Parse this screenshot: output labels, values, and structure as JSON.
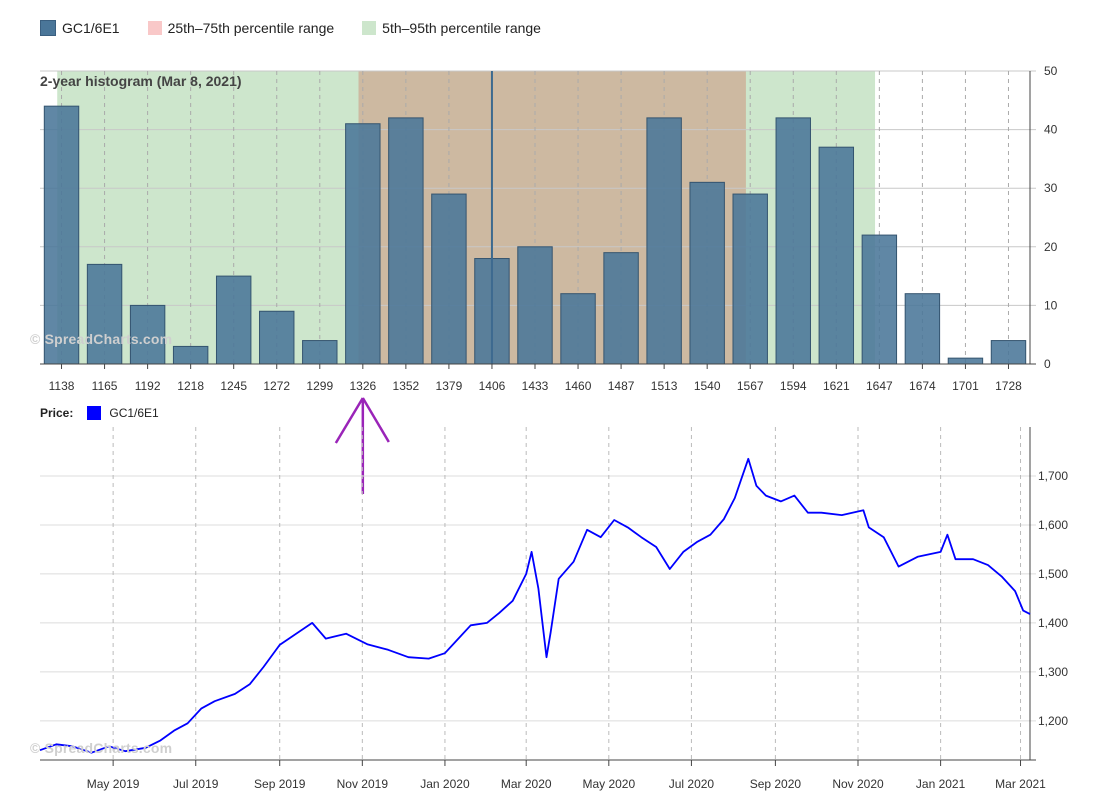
{
  "legend": {
    "items": [
      {
        "label": "GC1/6E1",
        "color": "#4a7699"
      },
      {
        "label": "25th–75th percentile range",
        "color": "#f9c8c8"
      },
      {
        "label": "5th–95th percentile range",
        "color": "#cde6cc"
      }
    ]
  },
  "watermark": "© SpreadCharts.com",
  "price_legend": {
    "label": "Price:",
    "series": "GC1/6E1",
    "color": "#0000ff"
  },
  "chart_data": [
    {
      "type": "bar",
      "title": "2-year histogram (Mar 8, 2021)",
      "categories": [
        "1138",
        "1165",
        "1192",
        "1218",
        "1245",
        "1272",
        "1299",
        "1326",
        "1352",
        "1379",
        "1406",
        "1433",
        "1460",
        "1487",
        "1513",
        "1540",
        "1567",
        "1594",
        "1621",
        "1647",
        "1674",
        "1701",
        "1728"
      ],
      "values": [
        44,
        17,
        10,
        3,
        15,
        9,
        4,
        41,
        42,
        29,
        18,
        20,
        12,
        19,
        42,
        31,
        29,
        42,
        37,
        22,
        12,
        1,
        4
      ],
      "ylim": [
        0,
        50
      ],
      "yticks": [
        0,
        10,
        20,
        30,
        40,
        50
      ],
      "bands": {
        "p5_p95": {
          "from_index": 0.4,
          "to_index": 19.4,
          "color": "#cde6cc"
        },
        "p25_p75": {
          "from_index": 7.4,
          "to_index": 16.4,
          "color": "#cdb9a1"
        }
      },
      "current_marker": {
        "category_index": 10,
        "color": "#3d6a8f"
      },
      "arrow": {
        "category_index": 7,
        "color": "#9a24b8"
      },
      "bar_color": "#4a7699",
      "legend": "top-left",
      "grid": true
    },
    {
      "type": "line",
      "series": [
        {
          "name": "GC1/6E1",
          "color": "#0000ff"
        }
      ],
      "x_ticks": [
        "May 2019",
        "Jul 2019",
        "Sep 2019",
        "Nov 2019",
        "Jan 2020",
        "Mar 2020",
        "May 2020",
        "Jul 2020",
        "Sep 2020",
        "Nov 2020",
        "Jan 2021",
        "Mar 2021"
      ],
      "yticks": [
        1200,
        1300,
        1400,
        1500,
        1600,
        1700
      ],
      "ytick_labels": [
        "1,200",
        "1,300",
        "1,400",
        "1,500",
        "1,600",
        "1,700"
      ],
      "ylim": [
        1120,
        1800
      ],
      "x_range": [
        "2019-03-08",
        "2021-03-08"
      ],
      "points": [
        [
          "2019-03-08",
          1140
        ],
        [
          "2019-03-20",
          1152
        ],
        [
          "2019-04-01",
          1148
        ],
        [
          "2019-04-15",
          1135
        ],
        [
          "2019-04-28",
          1148
        ],
        [
          "2019-05-10",
          1138
        ],
        [
          "2019-05-25",
          1145
        ],
        [
          "2019-06-05",
          1160
        ],
        [
          "2019-06-15",
          1180
        ],
        [
          "2019-06-25",
          1195
        ],
        [
          "2019-07-05",
          1225
        ],
        [
          "2019-07-15",
          1240
        ],
        [
          "2019-07-30",
          1255
        ],
        [
          "2019-08-10",
          1275
        ],
        [
          "2019-08-20",
          1310
        ],
        [
          "2019-09-01",
          1355
        ],
        [
          "2019-09-10",
          1372
        ],
        [
          "2019-09-25",
          1400
        ],
        [
          "2019-10-05",
          1368
        ],
        [
          "2019-10-20",
          1378
        ],
        [
          "2019-11-05",
          1356
        ],
        [
          "2019-11-20",
          1345
        ],
        [
          "2019-12-05",
          1330
        ],
        [
          "2019-12-20",
          1327
        ],
        [
          "2020-01-01",
          1338
        ],
        [
          "2020-01-10",
          1365
        ],
        [
          "2020-01-20",
          1395
        ],
        [
          "2020-02-01",
          1400
        ],
        [
          "2020-02-10",
          1420
        ],
        [
          "2020-02-20",
          1445
        ],
        [
          "2020-03-01",
          1500
        ],
        [
          "2020-03-05",
          1545
        ],
        [
          "2020-03-10",
          1470
        ],
        [
          "2020-03-16",
          1330
        ],
        [
          "2020-03-19",
          1380
        ],
        [
          "2020-03-25",
          1490
        ],
        [
          "2020-04-05",
          1525
        ],
        [
          "2020-04-15",
          1590
        ],
        [
          "2020-04-25",
          1575
        ],
        [
          "2020-05-05",
          1610
        ],
        [
          "2020-05-15",
          1595
        ],
        [
          "2020-05-25",
          1575
        ],
        [
          "2020-06-05",
          1555
        ],
        [
          "2020-06-15",
          1510
        ],
        [
          "2020-06-25",
          1545
        ],
        [
          "2020-07-05",
          1565
        ],
        [
          "2020-07-15",
          1580
        ],
        [
          "2020-07-25",
          1612
        ],
        [
          "2020-08-02",
          1655
        ],
        [
          "2020-08-07",
          1695
        ],
        [
          "2020-08-12",
          1735
        ],
        [
          "2020-08-18",
          1680
        ],
        [
          "2020-08-25",
          1660
        ],
        [
          "2020-09-05",
          1648
        ],
        [
          "2020-09-15",
          1660
        ],
        [
          "2020-09-25",
          1625
        ],
        [
          "2020-10-05",
          1625
        ],
        [
          "2020-10-20",
          1620
        ],
        [
          "2020-11-05",
          1630
        ],
        [
          "2020-11-09",
          1595
        ],
        [
          "2020-11-20",
          1575
        ],
        [
          "2020-12-01",
          1515
        ],
        [
          "2020-12-15",
          1535
        ],
        [
          "2021-01-01",
          1545
        ],
        [
          "2021-01-06",
          1580
        ],
        [
          "2021-01-12",
          1530
        ],
        [
          "2021-01-25",
          1530
        ],
        [
          "2021-02-05",
          1518
        ],
        [
          "2021-02-15",
          1495
        ],
        [
          "2021-02-25",
          1465
        ],
        [
          "2021-03-03",
          1425
        ],
        [
          "2021-03-08",
          1418
        ]
      ],
      "grid": true
    }
  ]
}
